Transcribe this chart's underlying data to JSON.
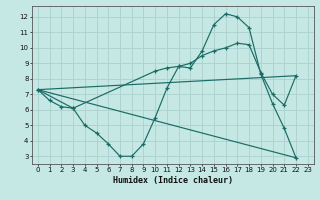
{
  "xlabel": "Humidex (Indice chaleur)",
  "bg_color": "#c5e8e5",
  "grid_color": "#aad0cc",
  "line_color": "#1a6b65",
  "xlim": [
    -0.5,
    23.5
  ],
  "ylim": [
    2.5,
    12.7
  ],
  "xticks": [
    0,
    1,
    2,
    3,
    4,
    5,
    6,
    7,
    8,
    9,
    10,
    11,
    12,
    13,
    14,
    15,
    16,
    17,
    18,
    19,
    20,
    21,
    22,
    23
  ],
  "yticks": [
    3,
    4,
    5,
    6,
    7,
    8,
    9,
    10,
    11,
    12
  ],
  "curve1_x": [
    0,
    1,
    2,
    3,
    4,
    5,
    6,
    7,
    8,
    9,
    10,
    11,
    12,
    13,
    14,
    15,
    16,
    17,
    18,
    19,
    20,
    21,
    22
  ],
  "curve1_y": [
    7.3,
    6.6,
    6.2,
    6.1,
    5.0,
    4.5,
    3.8,
    3.0,
    3.0,
    3.8,
    5.5,
    7.4,
    8.8,
    8.7,
    9.8,
    11.5,
    12.2,
    12.0,
    11.3,
    8.3,
    6.4,
    4.8,
    2.9
  ],
  "curve2_x": [
    0,
    3,
    10,
    11,
    12,
    13,
    14,
    15,
    16,
    17,
    18,
    19,
    20,
    21,
    22
  ],
  "curve2_y": [
    7.3,
    6.1,
    8.5,
    8.7,
    8.8,
    9.0,
    9.5,
    9.8,
    10.0,
    10.3,
    10.2,
    8.4,
    7.0,
    6.3,
    8.2
  ],
  "line3_x": [
    0,
    22
  ],
  "line3_y": [
    7.3,
    2.9
  ],
  "line4_x": [
    0,
    22
  ],
  "line4_y": [
    7.3,
    8.2
  ],
  "figwidth": 3.2,
  "figheight": 2.0,
  "dpi": 100
}
